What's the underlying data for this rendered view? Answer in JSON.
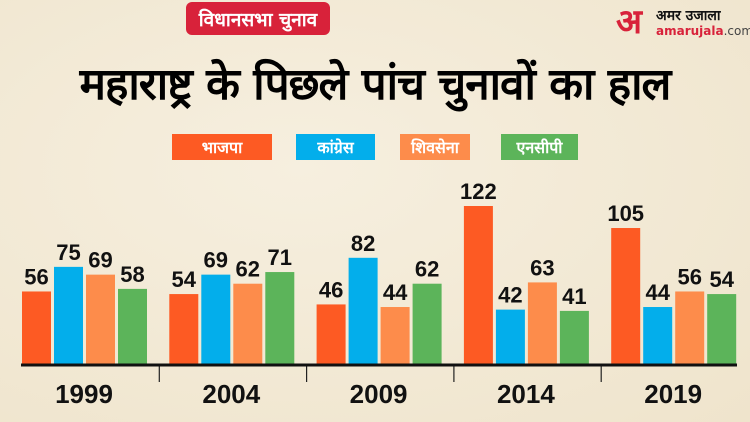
{
  "header": {
    "badge": "विधानसभा चुनाव",
    "title": "महाराष्ट्र के पिछले पांच चुनावों का हाल",
    "logo": {
      "mark": "अ",
      "name": "अमर उजाला",
      "url_main": "amarujala",
      "url_tld": ".com"
    }
  },
  "chart_data": {
    "type": "bar",
    "title": "महाराष्ट्र के पिछले पांच चुनावों का हाल",
    "categories": [
      "1999",
      "2004",
      "2009",
      "2014",
      "2019"
    ],
    "series": [
      {
        "name": "भाजपा",
        "color": "#fd5a23",
        "values": [
          56,
          54,
          46,
          122,
          105
        ]
      },
      {
        "name": "कांग्रेस",
        "color": "#03aeeb",
        "values": [
          75,
          69,
          82,
          42,
          44
        ]
      },
      {
        "name": "शिवसेना",
        "color": "#fd8c4b",
        "values": [
          69,
          62,
          44,
          63,
          56
        ]
      },
      {
        "name": "एनसीपी",
        "color": "#5cb45a",
        "values": [
          58,
          71,
          62,
          41,
          54
        ]
      }
    ],
    "legend": "top-center",
    "grid": false,
    "ylim": [
      0,
      122
    ]
  }
}
